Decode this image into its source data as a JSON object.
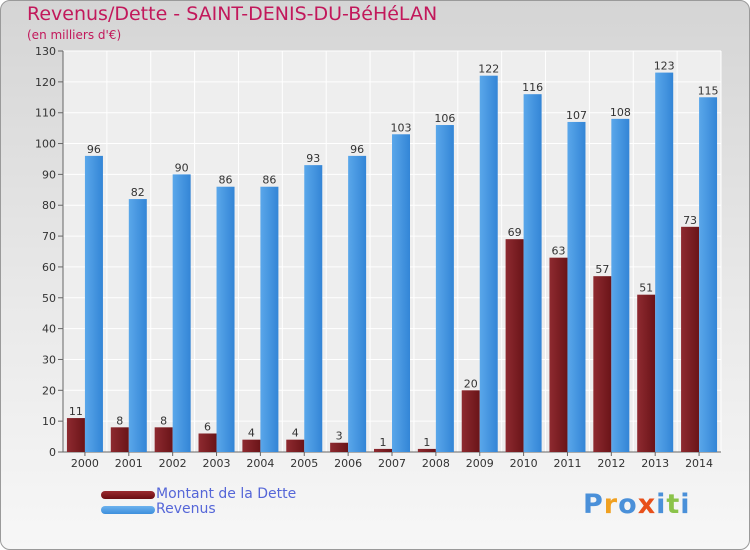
{
  "header": {
    "title": "Revenus/Dette - SAINT-DENIS-DU-BéHéLAN",
    "subtitle": "(en milliers d'€)"
  },
  "colors": {
    "title": "#c2185b",
    "dette": "#7a1a1f",
    "revenus": "#3d8fdc",
    "legend_text": "#5566d8"
  },
  "legend": {
    "items": [
      {
        "label": "Montant de la Dette",
        "color": "#6b0d12"
      },
      {
        "label": "Revenus",
        "color": "#3d8fdc"
      }
    ]
  },
  "logo": {
    "letters": [
      {
        "char": "P",
        "color": "#4a90d9"
      },
      {
        "char": "r",
        "color": "#f0a020"
      },
      {
        "char": "o",
        "color": "#4a90d9"
      },
      {
        "char": "x",
        "color": "#e8501a"
      },
      {
        "char": "i",
        "color": "#4a90d9"
      },
      {
        "char": "t",
        "color": "#8bc34a"
      },
      {
        "char": "i",
        "color": "#4a90d9"
      }
    ]
  },
  "chart_data": {
    "type": "bar",
    "title": "Revenus/Dette - SAINT-DENIS-DU-BéHéLAN",
    "subtitle": "(en milliers d'€)",
    "xlabel": "",
    "ylabel": "",
    "ylim": [
      0,
      130
    ],
    "yticks": [
      0,
      10,
      20,
      30,
      40,
      50,
      60,
      70,
      80,
      90,
      100,
      110,
      120,
      130
    ],
    "grid": true,
    "legend_position": "bottom-left",
    "categories": [
      "2000",
      "2001",
      "2002",
      "2003",
      "2004",
      "2005",
      "2006",
      "2007",
      "2008",
      "2009",
      "2010",
      "2011",
      "2012",
      "2013",
      "2014"
    ],
    "series": [
      {
        "name": "Montant de la Dette",
        "values": [
          11,
          8,
          8,
          6,
          4,
          4,
          3,
          1,
          1,
          20,
          69,
          63,
          57,
          51,
          73
        ]
      },
      {
        "name": "Revenus",
        "values": [
          96,
          82,
          90,
          86,
          86,
          93,
          96,
          103,
          106,
          122,
          116,
          107,
          108,
          123,
          115
        ]
      }
    ]
  }
}
